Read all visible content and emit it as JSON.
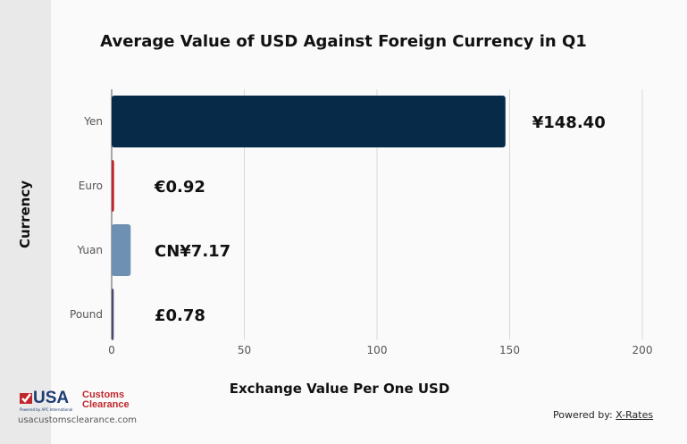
{
  "chart_data": {
    "type": "bar",
    "orientation": "horizontal",
    "title": "Average Value of USD Against Foreign Currency in Q1",
    "xlabel": "Exchange Value Per One USD",
    "ylabel": "Currency",
    "categories": [
      "Yen",
      "Euro",
      "Yuan",
      "Pound"
    ],
    "values": [
      148.4,
      0.92,
      7.17,
      0.78
    ],
    "data_labels": [
      "¥148.40",
      "€0.92",
      "CN¥7.17",
      "£0.78"
    ],
    "colors": [
      "#062a48",
      "#c0272d",
      "#6e91b3",
      "#4b4a70"
    ],
    "xlim": [
      0,
      200
    ],
    "xticks": [
      "0",
      "50",
      "100",
      "150",
      "200"
    ],
    "grid": true
  },
  "footer": {
    "logo_text": "USA",
    "logo_line1": "Customs",
    "logo_line2": "Clearance",
    "logo_tagline": "Powered by APC International",
    "site": "usacustomsclearance.com",
    "powered_prefix": "Powered by: ",
    "powered_source": "X-Rates"
  }
}
